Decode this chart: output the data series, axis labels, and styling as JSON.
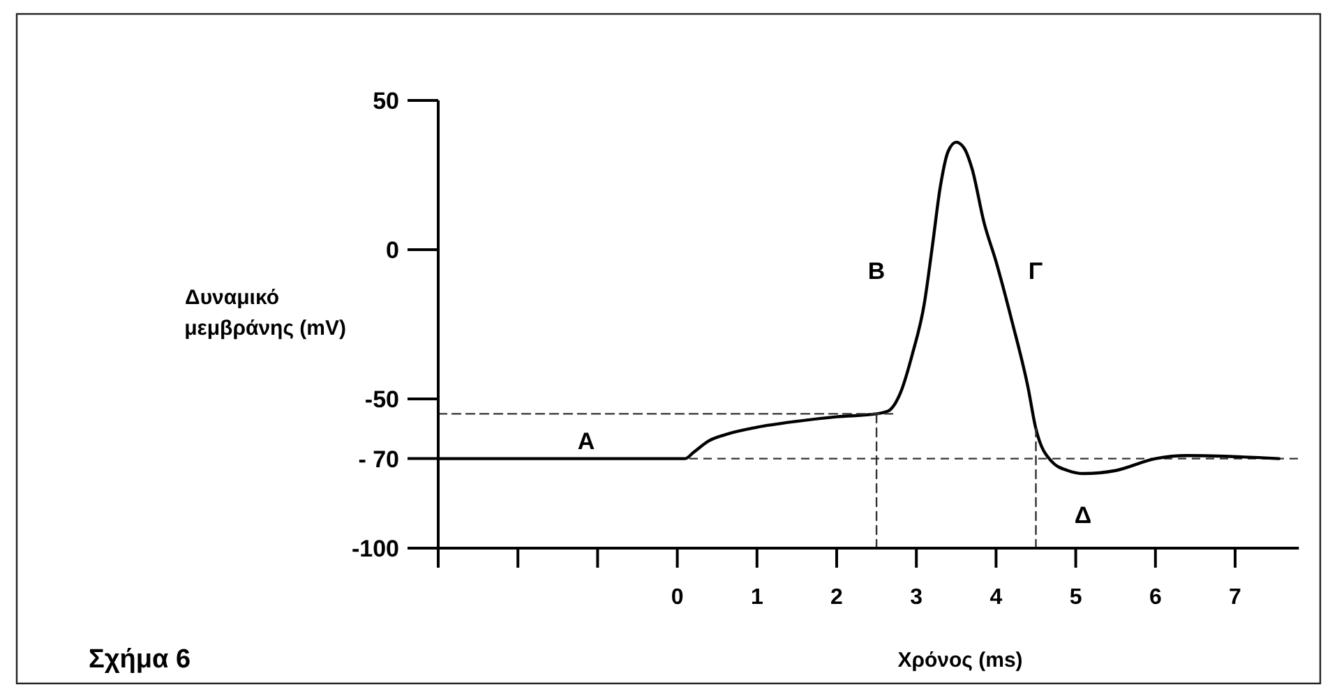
{
  "chart_data": {
    "type": "line",
    "xlabel": "Χρόνος (ms)",
    "ylabel": "Δυναμικό μεμβράνης (mV)",
    "xlim": [
      -3,
      7.8
    ],
    "xticks": [
      {
        "value": -3,
        "label": null
      },
      {
        "value": -2,
        "label": null
      },
      {
        "value": -1,
        "label": null
      },
      0,
      1,
      2,
      3,
      4,
      5,
      6,
      7
    ],
    "ylim": [
      -100,
      50
    ],
    "yticks": [
      -100,
      {
        "value": -70,
        "label": "- 70"
      },
      -50,
      0,
      50
    ],
    "series": [
      {
        "color": "#000000",
        "x": [
          -3,
          0.1,
          0.2,
          0.4,
          0.6,
          1,
          1.5,
          2,
          2.5,
          2.65,
          2.8,
          2.95,
          3.1,
          3.2,
          3.3,
          3.4,
          3.5,
          3.6,
          3.7,
          3.85,
          4,
          4.2,
          4.4,
          4.5,
          4.7,
          4.9,
          5.1,
          5.5,
          6,
          6.4,
          7.55
        ],
        "values": [
          -70,
          -70,
          -68,
          -64,
          -62,
          -59.5,
          -57.5,
          -56,
          -55,
          -54,
          -48,
          -35,
          -18,
          1,
          21,
          33,
          36,
          34,
          27,
          9,
          -4,
          -24,
          -46,
          -60,
          -71,
          -74,
          -75,
          -74,
          -70,
          -69,
          -70
        ]
      },
      {
        "color": "#333333",
        "line_style": "dashed",
        "x": [
          -3,
          2.7
        ],
        "values": [
          -55,
          -55
        ]
      },
      {
        "color": "#333333",
        "line_style": "dashed",
        "x": [
          2.5,
          2.5
        ],
        "values": [
          -100,
          -55
        ]
      },
      {
        "color": "#333333",
        "line_style": "dashed",
        "x": [
          4.5,
          4.5
        ],
        "values": [
          -100,
          -60
        ]
      }
    ],
    "ref_lines": [
      {
        "axis": "y",
        "value": -70,
        "color": "#333333",
        "line_style": "dashed"
      }
    ],
    "annotations": [
      "Α",
      "Β",
      "Γ",
      "Δ",
      "Σχήμα 6"
    ]
  }
}
